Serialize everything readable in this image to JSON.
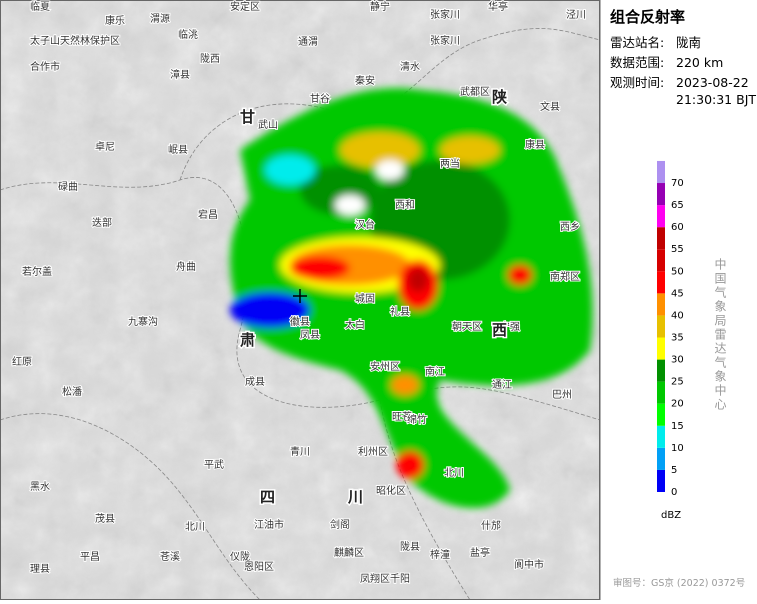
{
  "panel": {
    "title": "组合反射率",
    "rows": [
      {
        "label": "雷达站名:",
        "value": "陇南"
      },
      {
        "label": "数据范围:",
        "value": "220 km"
      },
      {
        "label": "观测时间:",
        "value": "2023-08-22"
      }
    ],
    "time": "21:30:31 BJT"
  },
  "legend": {
    "ticks": [
      0,
      5,
      10,
      15,
      20,
      25,
      30,
      35,
      40,
      45,
      50,
      55,
      60,
      65,
      70
    ],
    "colors": [
      "#0000f6",
      "#01a0f6",
      "#00ecec",
      "#01ff00",
      "#00c800",
      "#019000",
      "#ffff00",
      "#e7c000",
      "#ff9000",
      "#ff0000",
      "#d60000",
      "#c00000",
      "#ff00f0",
      "#9600b4",
      "#ad90f0"
    ],
    "unit": "dBZ",
    "credit": "中国气象局雷达气象中心"
  },
  "map": {
    "places": [
      "临夏",
      "康乐",
      "渭源",
      "安定区",
      "通渭",
      "静宁",
      "张家川",
      "华亭",
      "泾川",
      "太子山天然林保护区",
      "临洮",
      "陇西",
      "合作市",
      "漳县",
      "武山",
      "甘谷",
      "秦安",
      "清水",
      "张家川",
      "卓尼",
      "岷县",
      "宕昌",
      "碌曲",
      "迭部",
      "舟曲",
      "若尔盖",
      "九寨沟",
      "红原",
      "松潘",
      "平武",
      "黑水",
      "茂县",
      "理县",
      "北川",
      "江油市",
      "青川",
      "剑阁",
      "利州区",
      "昭化区",
      "旺苍",
      "南江",
      "通江",
      "巴州",
      "朝天区",
      "宁强",
      "南郑区",
      "西乡",
      "汉台",
      "城固",
      "凤县",
      "太白",
      "礼县",
      "西和",
      "成县",
      "徽县",
      "两当",
      "康县",
      "文县",
      "武都区",
      "麒麟区",
      "凤翔区",
      "千阳",
      "陇县",
      "梓潼",
      "盐亭",
      "阆中市",
      "苍溪",
      "仪陇",
      "恩阳区",
      "平昌",
      "安州区",
      "绵竹",
      "北川",
      "什邡"
    ],
    "provinces": [
      "甘",
      "肃",
      "四",
      "川",
      "陕",
      "西"
    ]
  },
  "footer": "审图号：GS京 (2022) 0372号"
}
